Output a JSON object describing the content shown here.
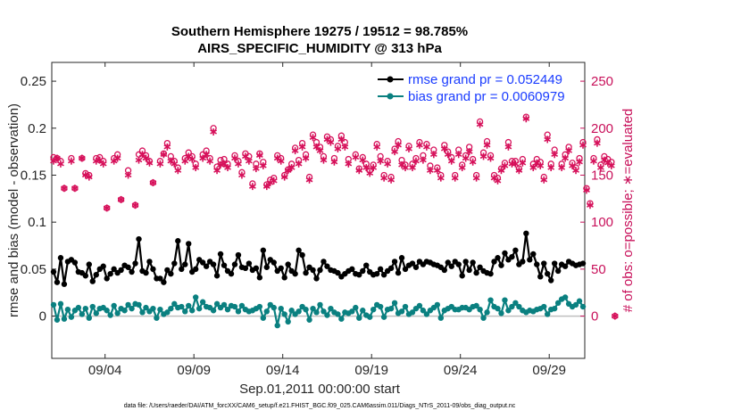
{
  "chart_data": {
    "type": "line",
    "title_line1": "Southern Hemisphere 19275 / 19512 = 98.785%",
    "title_line2": "AIRS_SPECIFIC_HUMIDITY @ 313 hPa",
    "ylabel_left": "rmse and bias (model - observation)",
    "ylabel_right": "# of obs: o=possible; ∗=evaluated",
    "xlabel": "Sep.01,2011 00:00:00 start",
    "footnote": "data file: /Users/raeder/DAI/ATM_forcXX/CAM6_setup/f.e21.FHIST_BGC.f09_025.CAM6assim.011/Diags_NTrS_2011-09/obs_diag_output.nc",
    "ylim_left": [
      -0.045,
      0.27
    ],
    "yticks_left": [
      "0",
      "0.05",
      "0.1",
      "0.15",
      "0.2",
      "0.25"
    ],
    "ylim_right": [
      -45,
      270
    ],
    "yticks_right": [
      "0",
      "50",
      "100",
      "150",
      "200",
      "250"
    ],
    "xlim": [
      1.0,
      31.0
    ],
    "xticks": [
      {
        "value": 4,
        "label": "09/04"
      },
      {
        "value": 9,
        "label": "09/09"
      },
      {
        "value": 14,
        "label": "09/14"
      },
      {
        "value": 19,
        "label": "09/19"
      },
      {
        "value": 24,
        "label": "09/24"
      },
      {
        "value": 29,
        "label": "09/29"
      }
    ],
    "legend_position": "top-right",
    "colors": {
      "rmse": "#000000",
      "bias": "#0a8080",
      "counts": "#d6105a",
      "zero_line": "#bfbfbf",
      "legend_text": "#1a3cff"
    },
    "series": [
      {
        "name": "rmse",
        "legend": "rmse grand pr = 0.052449",
        "values": [
          0.047,
          0.036,
          0.062,
          0.034,
          0.058,
          0.06,
          0.057,
          0.047,
          0.046,
          0.043,
          0.055,
          0.037,
          0.044,
          0.05,
          0.053,
          0.04,
          0.045,
          0.05,
          0.046,
          0.049,
          0.054,
          0.052,
          0.047,
          0.056,
          0.082,
          0.048,
          0.046,
          0.058,
          0.05,
          0.04,
          0.04,
          0.036,
          0.049,
          0.045,
          0.056,
          0.08,
          0.05,
          0.055,
          0.077,
          0.047,
          0.05,
          0.06,
          0.057,
          0.053,
          0.058,
          0.055,
          0.043,
          0.066,
          0.054,
          0.048,
          0.045,
          0.055,
          0.065,
          0.052,
          0.051,
          0.056,
          0.049,
          0.051,
          0.041,
          0.07,
          0.052,
          0.06,
          0.057,
          0.048,
          0.051,
          0.041,
          0.055,
          0.048,
          0.045,
          0.07,
          0.065,
          0.046,
          0.052,
          0.049,
          0.04,
          0.049,
          0.058,
          0.053,
          0.049,
          0.048,
          0.046,
          0.042,
          0.045,
          0.048,
          0.05,
          0.045,
          0.044,
          0.048,
          0.054,
          0.047,
          0.044,
          0.045,
          0.05,
          0.044,
          0.048,
          0.051,
          0.058,
          0.046,
          0.062,
          0.05,
          0.054,
          0.056,
          0.052,
          0.058,
          0.055,
          0.058,
          0.057,
          0.055,
          0.054,
          0.052,
          0.049,
          0.057,
          0.053,
          0.058,
          0.055,
          0.043,
          0.058,
          0.049,
          0.057,
          0.046,
          0.052,
          0.048,
          0.046,
          0.045,
          0.058,
          0.062,
          0.054,
          0.067,
          0.06,
          0.063,
          0.07,
          0.055,
          0.058,
          0.088,
          0.06,
          0.066,
          0.055,
          0.042,
          0.056,
          0.045,
          0.038,
          0.056,
          0.048,
          0.055,
          0.053,
          0.058,
          0.056,
          0.054,
          0.055,
          0.056
        ]
      },
      {
        "name": "bias",
        "legend": "bias grand pr = 0.0060979",
        "values": [
          0.012,
          -0.004,
          0.013,
          -0.003,
          0.007,
          -0.001,
          0.006,
          0.009,
          0.002,
          0.008,
          -0.002,
          0.01,
          0.003,
          0.008,
          0.009,
          0.006,
          0.001,
          0.011,
          0.003,
          0.008,
          0.006,
          0.012,
          0.008,
          0.013,
          0.012,
          0.004,
          0.009,
          0.005,
          0.008,
          -0.002,
          0.007,
          0.002,
          0.004,
          0.008,
          0.013,
          0.009,
          0.01,
          0.005,
          0.011,
          0.006,
          0.02,
          0.008,
          0.015,
          0.01,
          0.009,
          0.006,
          0.013,
          0.009,
          0.012,
          0.007,
          0.011,
          0.01,
          0.005,
          0.011,
          0.007,
          0.005,
          0.006,
          0.008,
          0.01,
          -0.002,
          0.005,
          0.012,
          0.009,
          -0.01,
          0.008,
          0.002,
          -0.006,
          0.006,
          0.002,
          0.005,
          0.01,
          0.007,
          -0.004,
          0.008,
          0.004,
          0.012,
          0.005,
          0.001,
          0.008,
          0.004,
          0.002,
          -0.003,
          0.004,
          0.003,
          0.005,
          0.009,
          -0.002,
          0.006,
          0.001,
          -0.001,
          0.007,
          0.012,
          0.01,
          -0.001,
          0.007,
          0.008,
          0.014,
          0.003,
          0.005,
          0.01,
          0.002,
          0.004,
          0.008,
          0.011,
          0.006,
          0.002,
          0.006,
          0.009,
          0.012,
          -0.002,
          0.006,
          0.008,
          0.01,
          0.007,
          0.007,
          0.009,
          0.009,
          0.007,
          0.01,
          0.011,
          0.007,
          -0.002,
          0.004,
          0.017,
          0.01,
          0.008,
          0.003,
          0.017,
          0.006,
          0.01,
          0.014,
          0.01,
          0.006,
          0.004,
          0.006,
          0.005,
          0.007,
          0.008,
          0.01,
          0.002,
          0.007,
          0.008,
          0.014,
          0.018,
          0.02,
          0.013,
          0.01,
          0.012,
          0.016,
          0.01
        ]
      },
      {
        "name": "obs_possible",
        "values": [
          169,
          168,
          165,
          136,
          null,
          168,
          136,
          null,
          168,
          152,
          150,
          null,
          168,
          169,
          165,
          115,
          null,
          168,
          172,
          124,
          null,
          155,
          null,
          118,
          172,
          176,
          171,
          165,
          142,
          null,
          165,
          173,
          184,
          170,
          165,
          158,
          null,
          168,
          174,
          170,
          162,
          null,
          172,
          176,
          168,
          200,
          159,
          166,
          167,
          162,
          null,
          171,
          165,
          153,
          173,
          170,
          141,
          162,
          173,
          164,
          140,
          145,
          147,
          171,
          168,
          150,
          156,
          162,
          179,
          166,
          184,
          172,
          148,
          193,
          185,
          180,
          170,
          191,
          188,
          168,
          181,
          192,
          185,
          167,
          null,
          172,
          157,
          169,
          162,
          155,
          161,
          183,
          170,
          150,
          165,
          148,
          178,
          186,
          166,
          161,
          181,
          162,
          168,
          185,
          171,
          183,
          160,
          177,
          158,
          150,
          182,
          175,
          169,
          150,
          177,
          161,
          171,
          180,
          167,
          150,
          207,
          174,
          186,
          171,
          150,
          147,
          157,
          163,
          185,
          165,
          165,
          157,
          167,
          212,
          null,
          162,
          167,
          164,
          148,
          193,
          162,
          177,
          null,
          162,
          172,
          180,
          163,
          158,
          168,
          185,
          136,
          120,
          168,
          188,
          161,
          170,
          167,
          164,
          0
        ]
      },
      {
        "name": "obs_evaluated",
        "values": [
          165,
          168,
          162,
          136,
          null,
          165,
          136,
          null,
          168,
          150,
          148,
          null,
          165,
          166,
          162,
          115,
          null,
          165,
          168,
          124,
          null,
          150,
          null,
          118,
          166,
          172,
          168,
          163,
          142,
          null,
          162,
          172,
          180,
          165,
          162,
          155,
          null,
          165,
          170,
          167,
          158,
          null,
          168,
          172,
          165,
          196,
          155,
          161,
          162,
          158,
          null,
          168,
          162,
          150,
          170,
          165,
          138,
          157,
          171,
          160,
          138,
          142,
          144,
          168,
          165,
          148,
          155,
          158,
          176,
          162,
          180,
          168,
          145,
          190,
          180,
          176,
          166,
          188,
          185,
          164,
          178,
          188,
          180,
          162,
          null,
          169,
          155,
          166,
          158,
          152,
          158,
          180,
          165,
          147,
          162,
          145,
          175,
          182,
          161,
          158,
          178,
          158,
          165,
          182,
          166,
          180,
          155,
          172,
          155,
          147,
          178,
          172,
          165,
          147,
          172,
          158,
          168,
          175,
          164,
          147,
          204,
          170,
          182,
          168,
          147,
          144,
          155,
          160,
          180,
          162,
          162,
          155,
          163,
          210,
          null,
          158,
          163,
          160,
          145,
          188,
          158,
          172,
          null,
          158,
          168,
          176,
          160,
          155,
          164,
          182,
          134,
          118,
          165,
          184,
          158,
          166,
          163,
          160,
          0
        ]
      }
    ]
  }
}
